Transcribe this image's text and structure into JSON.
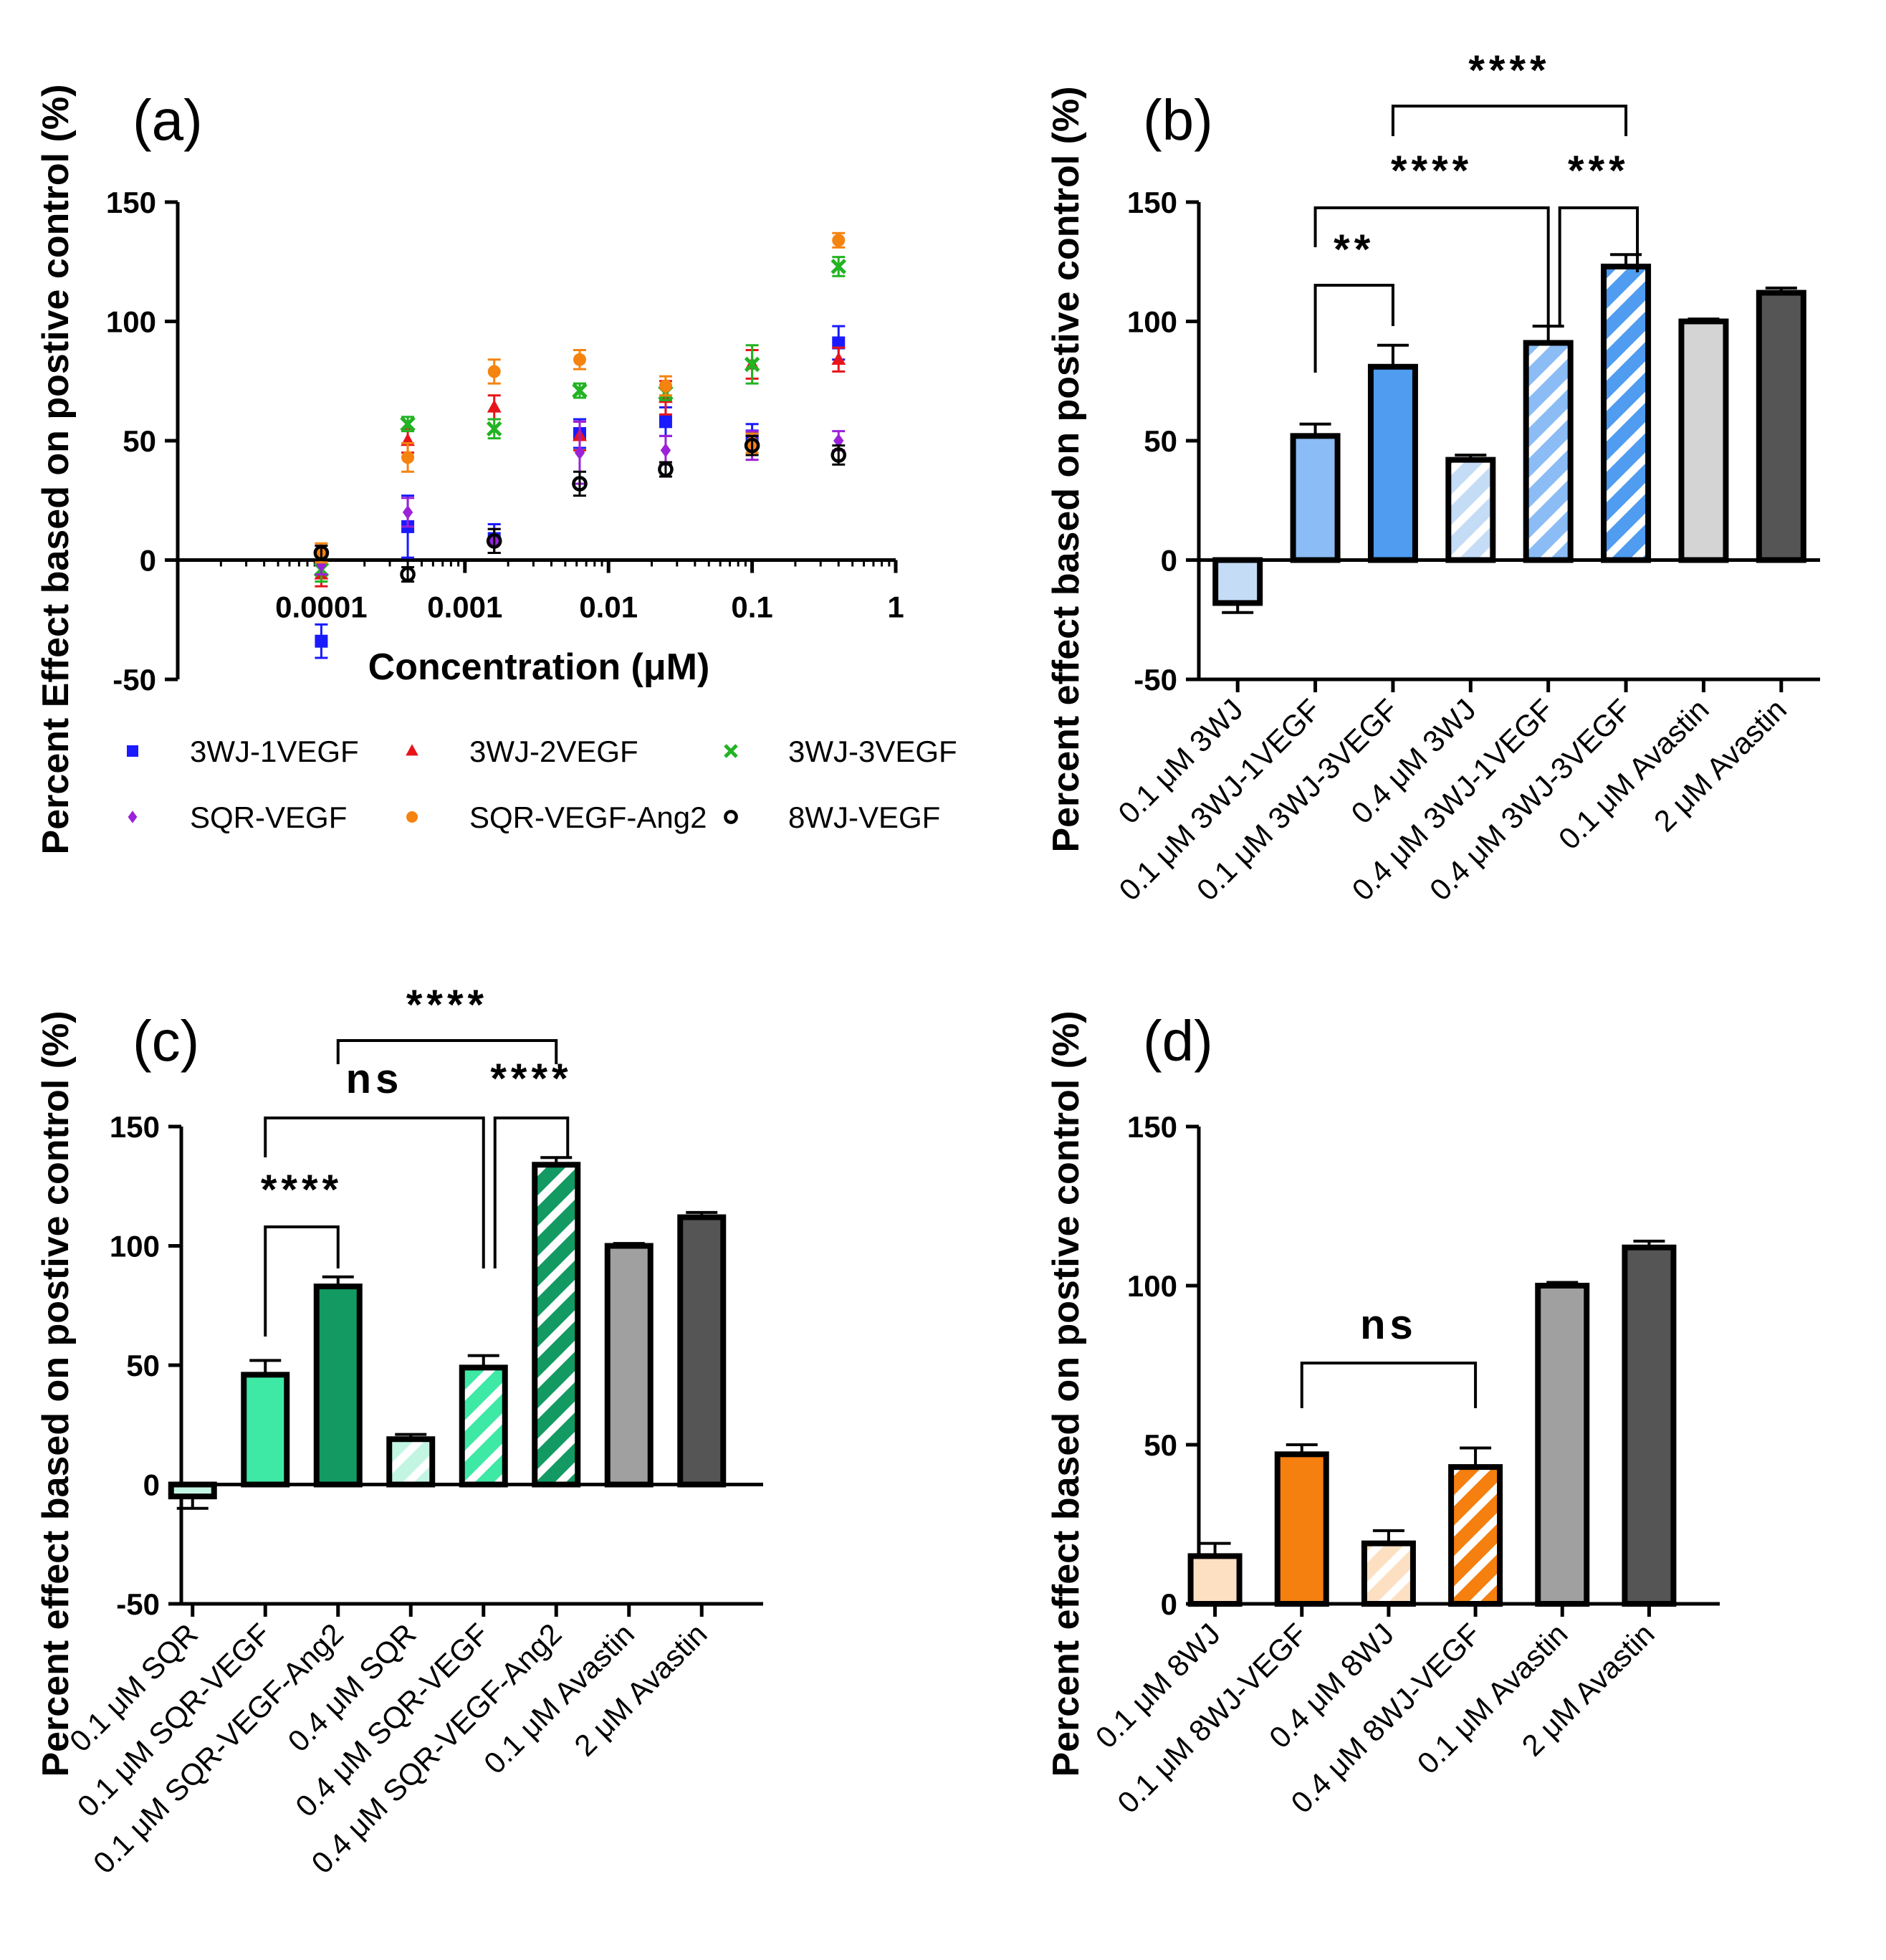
{
  "panels": {
    "a": {
      "label": "(a)",
      "ylabel": "Percent Effect based on postive control (%)",
      "xlabel": "Concentration (μM)",
      "y_ticks": [
        "150",
        "100",
        "50",
        "0",
        "-50"
      ],
      "x_ticks": [
        "0.0001",
        "0.001",
        "0.01",
        "0.1",
        "1"
      ],
      "legend": [
        {
          "name": "3WJ-1VEGF",
          "color": "#1a1aff",
          "marker": "square"
        },
        {
          "name": "3WJ-2VEGF",
          "color": "#e8141b",
          "marker": "triangle"
        },
        {
          "name": "3WJ-3VEGF",
          "color": "#22b322",
          "marker": "cross"
        },
        {
          "name": "SQR-VEGF",
          "color": "#9b22d8",
          "marker": "diamond"
        },
        {
          "name": "SQR-VEGF-Ang2",
          "color": "#f5830f",
          "marker": "circle"
        },
        {
          "name": "8WJ-VEGF",
          "color": "#000000",
          "marker": "open-circle"
        }
      ]
    },
    "b": {
      "label": "(b)",
      "ylabel": "Percent effect based on postive control (%)",
      "y_ticks": [
        "150",
        "100",
        "50",
        "0",
        "-50"
      ],
      "categories": [
        "0.1 μM 3WJ",
        "0.1 μM 3WJ-1VEGF",
        "0.1 μM 3WJ-3VEGF",
        "0.4 μM 3WJ",
        "0.4 μM 3WJ-1VEGF",
        "0.4 μM 3WJ-3VEGF",
        "0.1 μM Avastin",
        "2 μM Avastin"
      ],
      "sig": [
        "****",
        "****",
        "***",
        "**"
      ]
    },
    "c": {
      "label": "(c)",
      "ylabel": "Percent effect based on postive control (%)",
      "y_ticks": [
        "150",
        "100",
        "50",
        "0",
        "-50"
      ],
      "categories": [
        "0.1 μM SQR",
        "0.1 μM SQR-VEGF",
        "0.1 μM SQR-VEGF-Ang2",
        "0.4 μM SQR",
        "0.4 μM SQR-VEGF",
        "0.4 μM SQR-VEGF-Ang2",
        "0.1 μM Avastin",
        "2 μM Avastin"
      ],
      "sig": [
        "****",
        "ns",
        "****",
        "****"
      ]
    },
    "d": {
      "label": "(d)",
      "ylabel": "Percent effect based on postive control (%)",
      "y_ticks": [
        "150",
        "100",
        "50",
        "0"
      ],
      "categories": [
        "0.1 μM 8WJ",
        "0.1 μM 8WJ-VEGF",
        "0.4 μM 8WJ",
        "0.4 μM 8WJ-VEGF",
        "0.1 μM Avastin",
        "2 μM Avastin"
      ],
      "sig": [
        "ns"
      ]
    }
  },
  "chart_data": [
    {
      "panel": "a",
      "type": "scatter",
      "xscale": "log",
      "xlim": [
        1e-05,
        1
      ],
      "ylim": [
        -50,
        150
      ],
      "xlabel": "Concentration (μM)",
      "ylabel": "Percent Effect based on postive control (%)",
      "x": [
        0.0001,
        0.0004,
        0.0016,
        0.0063,
        0.025,
        0.1,
        0.4
      ],
      "series": [
        {
          "name": "3WJ-1VEGF",
          "color": "#1a1aff",
          "marker": "square",
          "values": [
            -34,
            14,
            9,
            53,
            58,
            52,
            91
          ],
          "errors": [
            7,
            13,
            6,
            6,
            6,
            5,
            7
          ]
        },
        {
          "name": "3WJ-2VEGF",
          "color": "#e8141b",
          "marker": "triangle",
          "values": [
            -6,
            50,
            64,
            52,
            68,
            82,
            84
          ],
          "errors": [
            5,
            5,
            5,
            6,
            7,
            6,
            5
          ]
        },
        {
          "name": "3WJ-3VEGF",
          "color": "#22b322",
          "marker": "cross",
          "values": [
            -4,
            57,
            55,
            71,
            70,
            82,
            123
          ],
          "errors": [
            5,
            3,
            4,
            3,
            3,
            8,
            4
          ]
        },
        {
          "name": "SQR-VEGF",
          "color": "#9b22d8",
          "marker": "diamond",
          "values": [
            -2,
            20,
            8,
            45,
            46,
            48,
            50
          ],
          "errors": [
            4,
            6,
            5,
            13,
            6,
            6,
            4
          ]
        },
        {
          "name": "SQR-VEGF-Ang2",
          "color": "#f5830f",
          "marker": "circle",
          "values": [
            3,
            43,
            79,
            84,
            73,
            49,
            134
          ],
          "errors": [
            4,
            6,
            5,
            4,
            4,
            4,
            3
          ]
        },
        {
          "name": "8WJ-VEGF",
          "color": "#000000",
          "marker": "open-circle",
          "values": [
            3,
            -6,
            8,
            32,
            38,
            48,
            44
          ],
          "errors": [
            3,
            3,
            5,
            5,
            3,
            4,
            4
          ]
        }
      ]
    },
    {
      "panel": "b",
      "type": "bar",
      "ylim": [
        -50,
        150
      ],
      "ylabel": "Percent effect based on postive control (%)",
      "categories": [
        "0.1 μM 3WJ",
        "0.1 μM 3WJ-1VEGF",
        "0.1 μM 3WJ-3VEGF",
        "0.4 μM 3WJ",
        "0.4 μM 3WJ-1VEGF",
        "0.4 μM 3WJ-3VEGF",
        "0.1 μM Avastin",
        "2 μM Avastin"
      ],
      "values": [
        -18,
        52,
        81,
        42,
        91,
        123,
        100,
        112
      ],
      "errors": [
        4,
        5,
        9,
        2,
        7,
        5,
        1,
        2
      ],
      "colors": [
        "#c5dcf7",
        "#8bbcf5",
        "#4f9cf0",
        "#c5dcf7",
        "#8bbcf5",
        "#4f9cf0",
        "#d4d4d4",
        "#555555"
      ],
      "hatched": [
        false,
        false,
        false,
        true,
        true,
        true,
        false,
        false
      ],
      "comparisons": [
        {
          "from": "0.1 μM 3WJ-3VEGF",
          "to": "0.4 μM 3WJ-3VEGF",
          "label": "****"
        },
        {
          "from": "0.1 μM 3WJ-1VEGF",
          "to": "0.4 μM 3WJ-1VEGF",
          "label": "****"
        },
        {
          "from": "0.4 μM 3WJ-1VEGF",
          "to": "0.4 μM 3WJ-3VEGF",
          "label": "***"
        },
        {
          "from": "0.1 μM 3WJ-1VEGF",
          "to": "0.1 μM 3WJ-3VEGF",
          "label": "**"
        }
      ]
    },
    {
      "panel": "c",
      "type": "bar",
      "ylim": [
        -50,
        150
      ],
      "ylabel": "Percent effect based on postive control (%)",
      "categories": [
        "0.1 μM SQR",
        "0.1 μM SQR-VEGF",
        "0.1 μM SQR-VEGF-Ang2",
        "0.4 μM SQR",
        "0.4 μM SQR-VEGF",
        "0.4 μM SQR-VEGF-Ang2",
        "0.1 μM Avastin",
        "2 μM Avastin"
      ],
      "values": [
        -5,
        46,
        83,
        19,
        49,
        134,
        100,
        112
      ],
      "errors": [
        5,
        6,
        4,
        2,
        5,
        3,
        1,
        2
      ],
      "colors": [
        "#c3f5e3",
        "#3ee8a5",
        "#129a62",
        "#c3f5e3",
        "#3ee8a5",
        "#129a62",
        "#a0a0a0",
        "#555555"
      ],
      "hatched": [
        false,
        false,
        false,
        true,
        true,
        true,
        false,
        false
      ],
      "comparisons": [
        {
          "from": "0.1 μM SQR-VEGF-Ang2",
          "to": "0.4 μM SQR-VEGF-Ang2",
          "label": "****"
        },
        {
          "from": "0.1 μM SQR-VEGF",
          "to": "0.4 μM SQR-VEGF",
          "label": "ns"
        },
        {
          "from": "0.4 μM SQR-VEGF",
          "to": "0.4 μM SQR-VEGF-Ang2",
          "label": "****"
        },
        {
          "from": "0.1 μM SQR-VEGF",
          "to": "0.1 μM SQR-VEGF-Ang2",
          "label": "****"
        }
      ]
    },
    {
      "panel": "d",
      "type": "bar",
      "ylim": [
        0,
        150
      ],
      "ylabel": "Percent effect based on postive control (%)",
      "categories": [
        "0.1 μM 8WJ",
        "0.1 μM 8WJ-VEGF",
        "0.4 μM 8WJ",
        "0.4 μM 8WJ-VEGF",
        "0.1 μM Avastin",
        "2 μM Avastin"
      ],
      "values": [
        15,
        47,
        19,
        43,
        100,
        112
      ],
      "errors": [
        4,
        3,
        4,
        6,
        1,
        2
      ],
      "colors": [
        "#fde0c2",
        "#f57f0f",
        "#fde0c2",
        "#f57f0f",
        "#a0a0a0",
        "#555555"
      ],
      "hatched": [
        false,
        false,
        true,
        true,
        false,
        false
      ],
      "comparisons": [
        {
          "from": "0.1 μM 8WJ-VEGF",
          "to": "0.4 μM 8WJ-VEGF",
          "label": "ns"
        }
      ]
    }
  ]
}
